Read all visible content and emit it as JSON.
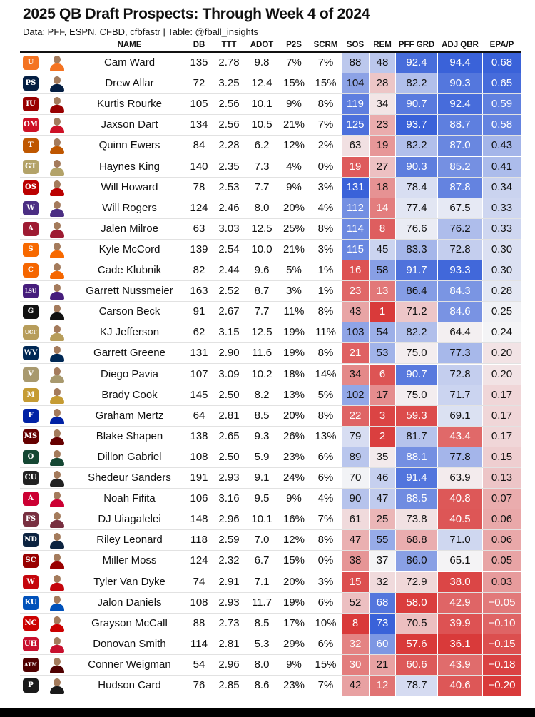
{
  "title": "2025 QB Draft Prospects: Through Week 4 of 2024",
  "subtitle": "Data: PFF, ESPN, CFBD, cfbfastr | Table: @fball_insights",
  "columns": [
    "NAME",
    "DB",
    "TTT",
    "ADOT",
    "P2S",
    "SCRM",
    "SOS",
    "REM",
    "PFF GRD",
    "ADJ QBR",
    "EPA/P"
  ],
  "colors": {
    "high": "#3a62d9",
    "mid": "#f4f4f6",
    "low": "#d93a3a"
  },
  "chart_data": {
    "type": "table",
    "columns": [
      "NAME",
      "DB",
      "TTT",
      "ADOT",
      "P2S",
      "SCRM",
      "SOS",
      "REM",
      "PFF GRD",
      "ADJ QBR",
      "EPA/P"
    ],
    "rows": [
      {
        "name": "Cam Ward",
        "team_logo": "miami-logo",
        "team_color": "#f47321",
        "logo_text": "U",
        "db": "135",
        "ttt": "2.78",
        "adot": "9.8",
        "p2s": "7%",
        "scrm": "7%",
        "sos": "88",
        "rem": "48",
        "pff": "92.4",
        "qbr": "94.4",
        "epa": "0.68"
      },
      {
        "name": "Drew Allar",
        "team_logo": "penn-state-logo",
        "team_color": "#041e42",
        "logo_text": "PS",
        "db": "72",
        "ttt": "3.25",
        "adot": "12.4",
        "p2s": "15%",
        "scrm": "15%",
        "sos": "104",
        "rem": "28",
        "pff": "82.2",
        "qbr": "90.3",
        "epa": "0.65"
      },
      {
        "name": "Kurtis Rourke",
        "team_logo": "indiana-logo",
        "team_color": "#990000",
        "logo_text": "IU",
        "db": "105",
        "ttt": "2.56",
        "adot": "10.1",
        "p2s": "9%",
        "scrm": "8%",
        "sos": "119",
        "rem": "34",
        "pff": "90.7",
        "qbr": "92.4",
        "epa": "0.59"
      },
      {
        "name": "Jaxson Dart",
        "team_logo": "ole-miss-logo",
        "team_color": "#ce1126",
        "logo_text": "OM",
        "db": "134",
        "ttt": "2.56",
        "adot": "10.5",
        "p2s": "21%",
        "scrm": "7%",
        "sos": "125",
        "rem": "23",
        "pff": "93.7",
        "qbr": "88.7",
        "epa": "0.58"
      },
      {
        "name": "Quinn Ewers",
        "team_logo": "texas-logo",
        "team_color": "#bf5700",
        "logo_text": "T",
        "db": "84",
        "ttt": "2.28",
        "adot": "6.2",
        "p2s": "12%",
        "scrm": "2%",
        "sos": "63",
        "rem": "19",
        "pff": "82.2",
        "qbr": "87.0",
        "epa": "0.43"
      },
      {
        "name": "Haynes King",
        "team_logo": "georgia-tech-logo",
        "team_color": "#b3a369",
        "logo_text": "GT",
        "db": "140",
        "ttt": "2.35",
        "adot": "7.3",
        "p2s": "4%",
        "scrm": "0%",
        "sos": "19",
        "rem": "27",
        "pff": "90.3",
        "qbr": "85.2",
        "epa": "0.41"
      },
      {
        "name": "Will Howard",
        "team_logo": "ohio-state-logo",
        "team_color": "#bb0000",
        "logo_text": "OS",
        "db": "78",
        "ttt": "2.53",
        "adot": "7.7",
        "p2s": "9%",
        "scrm": "3%",
        "sos": "131",
        "rem": "18",
        "pff": "78.4",
        "qbr": "87.8",
        "epa": "0.34"
      },
      {
        "name": "Will Rogers",
        "team_logo": "washington-logo",
        "team_color": "#4b2e83",
        "logo_text": "W",
        "db": "124",
        "ttt": "2.46",
        "adot": "8.0",
        "p2s": "20%",
        "scrm": "4%",
        "sos": "112",
        "rem": "14",
        "pff": "77.4",
        "qbr": "67.5",
        "epa": "0.33"
      },
      {
        "name": "Jalen Milroe",
        "team_logo": "alabama-logo",
        "team_color": "#9e1b32",
        "logo_text": "A",
        "db": "63",
        "ttt": "3.03",
        "adot": "12.5",
        "p2s": "25%",
        "scrm": "8%",
        "sos": "114",
        "rem": "8",
        "pff": "76.6",
        "qbr": "76.2",
        "epa": "0.33"
      },
      {
        "name": "Kyle McCord",
        "team_logo": "syracuse-logo",
        "team_color": "#f76900",
        "logo_text": "S",
        "db": "139",
        "ttt": "2.54",
        "adot": "10.0",
        "p2s": "21%",
        "scrm": "3%",
        "sos": "115",
        "rem": "45",
        "pff": "83.3",
        "qbr": "72.8",
        "epa": "0.30"
      },
      {
        "name": "Cade Klubnik",
        "team_logo": "clemson-logo",
        "team_color": "#f56600",
        "logo_text": "C",
        "db": "82",
        "ttt": "2.44",
        "adot": "9.6",
        "p2s": "5%",
        "scrm": "1%",
        "sos": "16",
        "rem": "58",
        "pff": "91.7",
        "qbr": "93.3",
        "epa": "0.30"
      },
      {
        "name": "Garrett Nussmeier",
        "team_logo": "lsu-logo",
        "team_color": "#461d7c",
        "logo_text": "LSU",
        "db": "163",
        "ttt": "2.52",
        "adot": "8.7",
        "p2s": "3%",
        "scrm": "1%",
        "sos": "23",
        "rem": "13",
        "pff": "86.4",
        "qbr": "84.3",
        "epa": "0.28"
      },
      {
        "name": "Carson Beck",
        "team_logo": "georgia-logo",
        "team_color": "#111111",
        "logo_text": "G",
        "db": "91",
        "ttt": "2.67",
        "adot": "7.7",
        "p2s": "11%",
        "scrm": "8%",
        "sos": "43",
        "rem": "1",
        "pff": "71.2",
        "qbr": "84.6",
        "epa": "0.25"
      },
      {
        "name": "KJ Jefferson",
        "team_logo": "ucf-logo",
        "team_color": "#b79d5b",
        "logo_text": "UCF",
        "db": "62",
        "ttt": "3.15",
        "adot": "12.5",
        "p2s": "19%",
        "scrm": "11%",
        "sos": "103",
        "rem": "54",
        "pff": "82.2",
        "qbr": "64.4",
        "epa": "0.24"
      },
      {
        "name": "Garrett Greene",
        "team_logo": "west-virginia-logo",
        "team_color": "#002855",
        "logo_text": "WV",
        "db": "131",
        "ttt": "2.90",
        "adot": "11.6",
        "p2s": "19%",
        "scrm": "8%",
        "sos": "21",
        "rem": "53",
        "pff": "75.0",
        "qbr": "77.3",
        "epa": "0.20"
      },
      {
        "name": "Diego Pavia",
        "team_logo": "vanderbilt-logo",
        "team_color": "#a8996e",
        "logo_text": "V",
        "db": "107",
        "ttt": "3.09",
        "adot": "10.2",
        "p2s": "18%",
        "scrm": "14%",
        "sos": "34",
        "rem": "6",
        "pff": "90.7",
        "qbr": "72.8",
        "epa": "0.20"
      },
      {
        "name": "Brady Cook",
        "team_logo": "missouri-logo",
        "team_color": "#c59b33",
        "logo_text": "M",
        "db": "145",
        "ttt": "2.50",
        "adot": "8.2",
        "p2s": "13%",
        "scrm": "5%",
        "sos": "102",
        "rem": "17",
        "pff": "75.0",
        "qbr": "71.7",
        "epa": "0.17"
      },
      {
        "name": "Graham Mertz",
        "team_logo": "florida-logo",
        "team_color": "#0021a5",
        "logo_text": "F",
        "db": "64",
        "ttt": "2.81",
        "adot": "8.5",
        "p2s": "20%",
        "scrm": "8%",
        "sos": "22",
        "rem": "3",
        "pff": "59.3",
        "qbr": "69.1",
        "epa": "0.17"
      },
      {
        "name": "Blake Shapen",
        "team_logo": "mississippi-state-logo",
        "team_color": "#660000",
        "logo_text": "MS",
        "db": "138",
        "ttt": "2.65",
        "adot": "9.3",
        "p2s": "26%",
        "scrm": "13%",
        "sos": "79",
        "rem": "2",
        "pff": "81.7",
        "qbr": "43.4",
        "epa": "0.17"
      },
      {
        "name": "Dillon Gabriel",
        "team_logo": "oregon-logo",
        "team_color": "#154733",
        "logo_text": "O",
        "db": "108",
        "ttt": "2.50",
        "adot": "5.9",
        "p2s": "23%",
        "scrm": "6%",
        "sos": "89",
        "rem": "35",
        "pff": "88.1",
        "qbr": "77.8",
        "epa": "0.15"
      },
      {
        "name": "Shedeur Sanders",
        "team_logo": "colorado-logo",
        "team_color": "#222222",
        "logo_text": "CU",
        "db": "191",
        "ttt": "2.93",
        "adot": "9.1",
        "p2s": "24%",
        "scrm": "6%",
        "sos": "70",
        "rem": "46",
        "pff": "91.4",
        "qbr": "63.9",
        "epa": "0.13"
      },
      {
        "name": "Noah Fifita",
        "team_logo": "arizona-logo",
        "team_color": "#cc0033",
        "logo_text": "A",
        "db": "106",
        "ttt": "3.16",
        "adot": "9.5",
        "p2s": "9%",
        "scrm": "4%",
        "sos": "90",
        "rem": "47",
        "pff": "88.5",
        "qbr": "40.8",
        "epa": "0.07"
      },
      {
        "name": "DJ Uiagalelei",
        "team_logo": "florida-state-logo",
        "team_color": "#782f40",
        "logo_text": "FS",
        "db": "148",
        "ttt": "2.96",
        "adot": "10.1",
        "p2s": "16%",
        "scrm": "7%",
        "sos": "61",
        "rem": "25",
        "pff": "73.8",
        "qbr": "40.5",
        "epa": "0.06"
      },
      {
        "name": "Riley Leonard",
        "team_logo": "notre-dame-logo",
        "team_color": "#0c2340",
        "logo_text": "ND",
        "db": "118",
        "ttt": "2.59",
        "adot": "7.0",
        "p2s": "12%",
        "scrm": "8%",
        "sos": "47",
        "rem": "55",
        "pff": "68.8",
        "qbr": "71.0",
        "epa": "0.06"
      },
      {
        "name": "Miller Moss",
        "team_logo": "usc-logo",
        "team_color": "#990000",
        "logo_text": "SC",
        "db": "124",
        "ttt": "2.32",
        "adot": "6.7",
        "p2s": "15%",
        "scrm": "0%",
        "sos": "38",
        "rem": "37",
        "pff": "86.0",
        "qbr": "65.1",
        "epa": "0.05"
      },
      {
        "name": "Tyler Van Dyke",
        "team_logo": "wisconsin-logo",
        "team_color": "#c5050c",
        "logo_text": "W",
        "db": "74",
        "ttt": "2.91",
        "adot": "7.1",
        "p2s": "20%",
        "scrm": "3%",
        "sos": "15",
        "rem": "32",
        "pff": "72.9",
        "qbr": "38.0",
        "epa": "0.03"
      },
      {
        "name": "Jalon Daniels",
        "team_logo": "kansas-logo",
        "team_color": "#0051ba",
        "logo_text": "KU",
        "db": "108",
        "ttt": "2.93",
        "adot": "11.7",
        "p2s": "19%",
        "scrm": "6%",
        "sos": "52",
        "rem": "68",
        "pff": "58.0",
        "qbr": "42.9",
        "epa": "−0.05"
      },
      {
        "name": "Grayson McCall",
        "team_logo": "nc-state-logo",
        "team_color": "#cc0000",
        "logo_text": "NC",
        "db": "88",
        "ttt": "2.73",
        "adot": "8.5",
        "p2s": "17%",
        "scrm": "10%",
        "sos": "8",
        "rem": "73",
        "pff": "70.5",
        "qbr": "39.9",
        "epa": "−0.10"
      },
      {
        "name": "Donovan Smith",
        "team_logo": "houston-logo",
        "team_color": "#c8102e",
        "logo_text": "UH",
        "db": "114",
        "ttt": "2.81",
        "adot": "5.3",
        "p2s": "29%",
        "scrm": "6%",
        "sos": "32",
        "rem": "60",
        "pff": "57.6",
        "qbr": "36.1",
        "epa": "−0.15"
      },
      {
        "name": "Conner Weigman",
        "team_logo": "texas-am-logo",
        "team_color": "#500000",
        "logo_text": "ATM",
        "db": "54",
        "ttt": "2.96",
        "adot": "8.0",
        "p2s": "9%",
        "scrm": "15%",
        "sos": "30",
        "rem": "21",
        "pff": "60.6",
        "qbr": "43.9",
        "epa": "−0.18"
      },
      {
        "name": "Hudson Card",
        "team_logo": "purdue-logo",
        "team_color": "#1a1a1a",
        "logo_text": "P",
        "db": "76",
        "ttt": "2.85",
        "adot": "8.6",
        "p2s": "23%",
        "scrm": "7%",
        "sos": "42",
        "rem": "12",
        "pff": "78.7",
        "qbr": "40.6",
        "epa": "−0.20"
      }
    ]
  }
}
